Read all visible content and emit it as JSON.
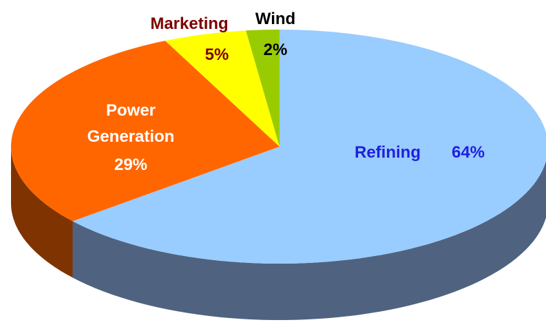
{
  "chart_data": {
    "type": "pie3d",
    "categories": [
      "Refining",
      "Power Generation",
      "Marketing",
      "Wind"
    ],
    "values": [
      64,
      29,
      5,
      2
    ],
    "value_labels": [
      "64%",
      "29%",
      "5%",
      "2%"
    ],
    "colors": [
      "#99ccff",
      "#ff6600",
      "#ffff00",
      "#99cc00"
    ],
    "side_colors": [
      "#4f6380",
      "#7f3300",
      "#7f7f00",
      "#4c6600"
    ],
    "label_colors": [
      "#1f1fe0",
      "#ffffff",
      "#7f0000",
      "#000000"
    ]
  }
}
